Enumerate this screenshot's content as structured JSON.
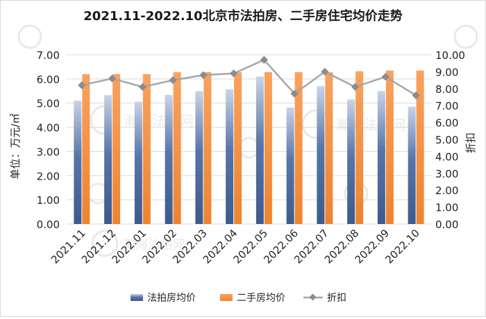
{
  "chart_data": {
    "type": "bar",
    "title": "2021.11-2022.10北京市法拍房、二手房住宅均价走势",
    "ylabel_left": "单位：万元/㎡",
    "ylabel_right": "折扣",
    "categories": [
      "2021.11",
      "2021.12",
      "2022.01",
      "2022.02",
      "2022.03",
      "2022.04",
      "2022.05",
      "2022.06",
      "2022.07",
      "2022.08",
      "2022.09",
      "2022.10"
    ],
    "series": [
      {
        "name": "法拍房均价",
        "type": "bar",
        "axis": "left",
        "color": "#4a6a9e",
        "values": [
          5.1,
          5.33,
          5.06,
          5.34,
          5.5,
          5.57,
          6.1,
          4.82,
          5.7,
          5.15,
          5.5,
          4.85
        ]
      },
      {
        "name": "二手房均价",
        "type": "bar",
        "axis": "left",
        "color": "#f08a3e",
        "values": [
          6.2,
          6.2,
          6.2,
          6.28,
          6.28,
          6.28,
          6.28,
          6.28,
          6.28,
          6.32,
          6.35,
          6.35
        ]
      },
      {
        "name": "折扣",
        "type": "line",
        "axis": "right",
        "color": "#a6a6a6",
        "values": [
          8.2,
          8.6,
          8.1,
          8.5,
          8.8,
          8.9,
          9.7,
          7.7,
          9.0,
          8.1,
          8.7,
          7.6
        ]
      }
    ],
    "ylim_left": [
      0,
      7
    ],
    "yticks_left": [
      "0.00",
      "1.00",
      "2.00",
      "3.00",
      "4.00",
      "5.00",
      "6.00",
      "7.00"
    ],
    "ylim_right": [
      0,
      10
    ],
    "yticks_right": [
      "0.00",
      "1.00",
      "2.00",
      "3.00",
      "4.00",
      "5.00",
      "6.00",
      "7.00",
      "8.00",
      "9.00",
      "10.00"
    ],
    "grid": true,
    "legend_position": "bottom"
  },
  "watermark": {
    "brand": "瀚海法拍网"
  }
}
